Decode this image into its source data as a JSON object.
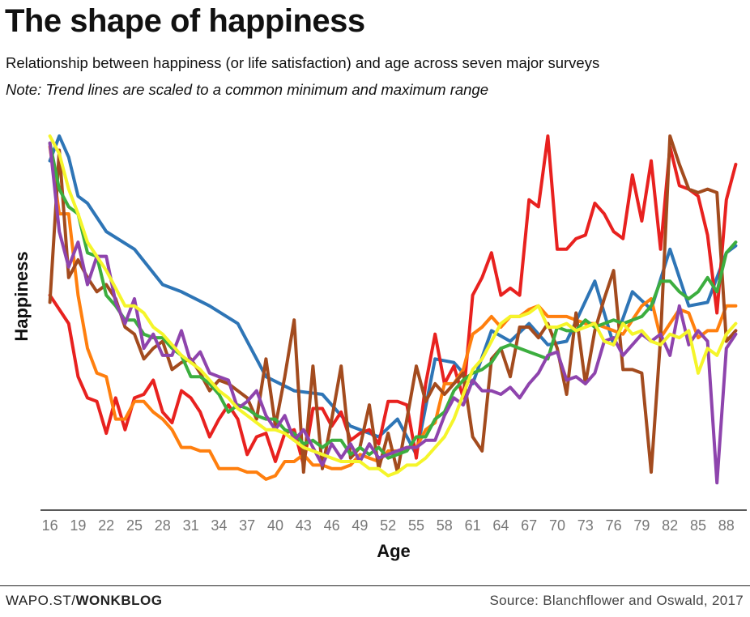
{
  "header": {
    "title": "The shape of happiness",
    "subtitle": "Relationship between happiness (or life satisfaction) and age across seven major surveys",
    "note": "Note: Trend lines are scaled to a common minimum and maximum range"
  },
  "footer": {
    "site_prefix": "WAPO.ST/",
    "site_section": "WONKBLOG",
    "source": "Source: Blanchflower and Oswald, 2017"
  },
  "chart_data": {
    "type": "line",
    "xlabel": "Age",
    "ylabel": "Happiness",
    "xlim": [
      15,
      90
    ],
    "ylim": [
      0,
      1
    ],
    "x_ticks": [
      16,
      19,
      22,
      25,
      28,
      31,
      34,
      37,
      40,
      43,
      46,
      49,
      52,
      55,
      58,
      61,
      64,
      67,
      70,
      73,
      76,
      79,
      82,
      85,
      88
    ],
    "y_ticks_shown": false,
    "grid": false,
    "legend": "none",
    "series": [
      {
        "color": "#2e75b6",
        "x": [
          16,
          17,
          18,
          19,
          20,
          22,
          25,
          28,
          30,
          33,
          36,
          39,
          42,
          45,
          48,
          51,
          53,
          55,
          57,
          59,
          61,
          63,
          65,
          67,
          69,
          71,
          74,
          76,
          78,
          80,
          82,
          84,
          86,
          88,
          89
        ],
        "values": [
          0.93,
          1.0,
          0.94,
          0.83,
          0.81,
          0.73,
          0.68,
          0.58,
          0.56,
          0.52,
          0.47,
          0.32,
          0.28,
          0.27,
          0.18,
          0.15,
          0.2,
          0.1,
          0.37,
          0.36,
          0.3,
          0.45,
          0.42,
          0.47,
          0.41,
          0.42,
          0.59,
          0.41,
          0.56,
          0.51,
          0.68,
          0.52,
          0.53,
          0.67,
          0.69
        ]
      },
      {
        "color": "#e8211f",
        "x": [
          16,
          17,
          18,
          19,
          20,
          21,
          22,
          23,
          24,
          25,
          26,
          27,
          28,
          29,
          30,
          31,
          32,
          33,
          34,
          35,
          36,
          37,
          38,
          39,
          40,
          41,
          42,
          43,
          44,
          45,
          46,
          47,
          48,
          49,
          50,
          51,
          52,
          53,
          54,
          55,
          56,
          57,
          58,
          59,
          60,
          61,
          62,
          63,
          64,
          65,
          66,
          67,
          68,
          69,
          70,
          71,
          72,
          73,
          74,
          75,
          76,
          77,
          78,
          79,
          80,
          81,
          82,
          83,
          84,
          85,
          86,
          87,
          88,
          89
        ],
        "values": [
          0.55,
          0.51,
          0.47,
          0.32,
          0.26,
          0.25,
          0.16,
          0.26,
          0.17,
          0.26,
          0.27,
          0.31,
          0.22,
          0.19,
          0.28,
          0.26,
          0.22,
          0.15,
          0.2,
          0.24,
          0.2,
          0.1,
          0.15,
          0.16,
          0.08,
          0.16,
          0.17,
          0.07,
          0.23,
          0.23,
          0.18,
          0.22,
          0.14,
          0.16,
          0.17,
          0.13,
          0.25,
          0.25,
          0.24,
          0.09,
          0.3,
          0.44,
          0.3,
          0.35,
          0.26,
          0.55,
          0.6,
          0.67,
          0.55,
          0.57,
          0.55,
          0.82,
          0.8,
          1.0,
          0.68,
          0.68,
          0.71,
          0.72,
          0.81,
          0.78,
          0.73,
          0.71,
          0.89,
          0.76,
          0.93,
          0.68,
          0.97,
          0.86,
          0.85,
          0.83,
          0.72,
          0.5,
          0.82,
          0.92
        ]
      },
      {
        "color": "#ff7f0e",
        "x": [
          16,
          17,
          18,
          19,
          20,
          21,
          22,
          23,
          24,
          25,
          26,
          27,
          28,
          29,
          30,
          31,
          32,
          33,
          34,
          35,
          36,
          37,
          38,
          39,
          40,
          41,
          42,
          43,
          44,
          45,
          46,
          47,
          48,
          49,
          50,
          51,
          52,
          53,
          54,
          55,
          56,
          57,
          58,
          59,
          60,
          61,
          62,
          63,
          64,
          65,
          66,
          67,
          68,
          69,
          70,
          71,
          72,
          73,
          74,
          75,
          76,
          77,
          78,
          79,
          80,
          81,
          82,
          83,
          84,
          85,
          86,
          87,
          88,
          89
        ],
        "values": [
          0.97,
          0.78,
          0.78,
          0.55,
          0.4,
          0.33,
          0.32,
          0.2,
          0.2,
          0.25,
          0.25,
          0.22,
          0.2,
          0.17,
          0.12,
          0.12,
          0.11,
          0.11,
          0.06,
          0.06,
          0.06,
          0.05,
          0.05,
          0.03,
          0.04,
          0.08,
          0.08,
          0.1,
          0.07,
          0.07,
          0.06,
          0.06,
          0.07,
          0.1,
          0.09,
          0.08,
          0.11,
          0.11,
          0.12,
          0.12,
          0.17,
          0.19,
          0.3,
          0.3,
          0.34,
          0.44,
          0.46,
          0.49,
          0.46,
          0.49,
          0.49,
          0.51,
          0.52,
          0.49,
          0.49,
          0.49,
          0.48,
          0.47,
          0.47,
          0.46,
          0.45,
          0.44,
          0.48,
          0.52,
          0.54,
          0.43,
          0.47,
          0.51,
          0.5,
          0.43,
          0.45,
          0.45,
          0.52,
          0.52
        ]
      },
      {
        "color": "#a34b1e",
        "x": [
          16,
          17,
          18,
          19,
          20,
          21,
          22,
          23,
          24,
          25,
          26,
          27,
          28,
          29,
          30,
          31,
          32,
          33,
          34,
          35,
          36,
          37,
          38,
          39,
          40,
          41,
          42,
          43,
          44,
          45,
          46,
          47,
          48,
          49,
          50,
          51,
          52,
          53,
          54,
          55,
          56,
          57,
          58,
          59,
          60,
          61,
          62,
          63,
          64,
          65,
          66,
          67,
          68,
          69,
          70,
          71,
          72,
          73,
          74,
          75,
          76,
          77,
          78,
          79,
          80,
          81,
          82,
          83,
          84,
          85,
          86,
          87,
          88,
          89
        ],
        "values": [
          0.53,
          0.96,
          0.6,
          0.65,
          0.6,
          0.56,
          0.58,
          0.54,
          0.46,
          0.44,
          0.37,
          0.4,
          0.42,
          0.34,
          0.36,
          0.37,
          0.33,
          0.28,
          0.31,
          0.3,
          0.28,
          0.26,
          0.2,
          0.37,
          0.18,
          0.32,
          0.48,
          0.05,
          0.35,
          0.06,
          0.2,
          0.35,
          0.09,
          0.12,
          0.24,
          0.06,
          0.16,
          0.05,
          0.2,
          0.35,
          0.25,
          0.3,
          0.27,
          0.3,
          0.33,
          0.15,
          0.11,
          0.37,
          0.4,
          0.32,
          0.46,
          0.46,
          0.43,
          0.47,
          0.4,
          0.27,
          0.5,
          0.3,
          0.45,
          0.54,
          0.62,
          0.34,
          0.34,
          0.33,
          0.05,
          0.43,
          1.0,
          0.92,
          0.85,
          0.84,
          0.85,
          0.84,
          0.42,
          0.45
        ]
      },
      {
        "color": "#3cae3f",
        "x": [
          16,
          17,
          18,
          19,
          20,
          21,
          22,
          23,
          24,
          25,
          26,
          27,
          28,
          29,
          30,
          31,
          32,
          33,
          34,
          35,
          36,
          37,
          38,
          39,
          40,
          41,
          42,
          43,
          44,
          45,
          46,
          47,
          48,
          49,
          50,
          51,
          52,
          53,
          54,
          55,
          56,
          57,
          58,
          59,
          60,
          61,
          62,
          63,
          64,
          65,
          66,
          67,
          68,
          69,
          70,
          71,
          72,
          73,
          74,
          75,
          76,
          77,
          78,
          79,
          80,
          81,
          82,
          83,
          84,
          85,
          86,
          87,
          88,
          89
        ],
        "values": [
          0.98,
          0.85,
          0.8,
          0.78,
          0.67,
          0.66,
          0.55,
          0.52,
          0.48,
          0.48,
          0.44,
          0.43,
          0.43,
          0.4,
          0.38,
          0.32,
          0.32,
          0.3,
          0.27,
          0.22,
          0.24,
          0.23,
          0.21,
          0.2,
          0.2,
          0.17,
          0.16,
          0.13,
          0.14,
          0.12,
          0.14,
          0.14,
          0.1,
          0.12,
          0.1,
          0.12,
          0.09,
          0.1,
          0.11,
          0.15,
          0.15,
          0.2,
          0.22,
          0.28,
          0.31,
          0.33,
          0.34,
          0.36,
          0.4,
          0.41,
          0.4,
          0.39,
          0.38,
          0.37,
          0.46,
          0.45,
          0.45,
          0.48,
          0.46,
          0.47,
          0.48,
          0.47,
          0.48,
          0.49,
          0.52,
          0.59,
          0.59,
          0.56,
          0.54,
          0.56,
          0.6,
          0.56,
          0.67,
          0.7
        ]
      },
      {
        "color": "#8e44ad",
        "x": [
          16,
          17,
          18,
          19,
          20,
          21,
          22,
          23,
          24,
          25,
          26,
          27,
          28,
          29,
          30,
          31,
          32,
          33,
          34,
          35,
          36,
          37,
          38,
          39,
          40,
          41,
          42,
          43,
          44,
          45,
          46,
          47,
          48,
          49,
          50,
          51,
          52,
          53,
          54,
          55,
          56,
          57,
          58,
          59,
          60,
          61,
          62,
          63,
          64,
          65,
          66,
          67,
          68,
          69,
          70,
          71,
          72,
          73,
          74,
          75,
          76,
          77,
          78,
          79,
          80,
          81,
          82,
          83,
          84,
          85,
          86,
          87,
          88,
          89
        ],
        "values": [
          0.98,
          0.73,
          0.63,
          0.7,
          0.58,
          0.66,
          0.66,
          0.53,
          0.47,
          0.54,
          0.4,
          0.44,
          0.38,
          0.38,
          0.45,
          0.36,
          0.39,
          0.33,
          0.32,
          0.31,
          0.23,
          0.25,
          0.28,
          0.21,
          0.17,
          0.21,
          0.14,
          0.17,
          0.12,
          0.07,
          0.13,
          0.09,
          0.13,
          0.08,
          0.13,
          0.09,
          0.1,
          0.11,
          0.12,
          0.12,
          0.14,
          0.14,
          0.21,
          0.26,
          0.24,
          0.31,
          0.28,
          0.28,
          0.27,
          0.29,
          0.26,
          0.3,
          0.33,
          0.38,
          0.39,
          0.31,
          0.32,
          0.3,
          0.33,
          0.42,
          0.43,
          0.38,
          0.41,
          0.44,
          0.42,
          0.44,
          0.38,
          0.52,
          0.41,
          0.45,
          0.42,
          0.02,
          0.4,
          0.44
        ]
      },
      {
        "color": "#f5f52a",
        "x": [
          16,
          17,
          18,
          19,
          20,
          21,
          22,
          23,
          24,
          25,
          26,
          27,
          28,
          29,
          30,
          31,
          32,
          33,
          34,
          35,
          36,
          37,
          38,
          39,
          40,
          41,
          42,
          43,
          44,
          45,
          46,
          47,
          48,
          49,
          50,
          51,
          52,
          53,
          54,
          55,
          56,
          57,
          58,
          59,
          60,
          61,
          62,
          63,
          64,
          65,
          66,
          67,
          68,
          69,
          70,
          71,
          72,
          73,
          74,
          75,
          76,
          77,
          78,
          79,
          80,
          81,
          82,
          83,
          84,
          85,
          86,
          87,
          88,
          89
        ],
        "values": [
          1.0,
          0.95,
          0.85,
          0.78,
          0.7,
          0.66,
          0.62,
          0.57,
          0.52,
          0.52,
          0.5,
          0.46,
          0.44,
          0.41,
          0.38,
          0.36,
          0.34,
          0.31,
          0.28,
          0.26,
          0.23,
          0.21,
          0.19,
          0.17,
          0.17,
          0.16,
          0.14,
          0.12,
          0.11,
          0.1,
          0.09,
          0.08,
          0.08,
          0.08,
          0.06,
          0.06,
          0.04,
          0.05,
          0.07,
          0.07,
          0.09,
          0.12,
          0.15,
          0.2,
          0.27,
          0.34,
          0.37,
          0.42,
          0.47,
          0.49,
          0.49,
          0.5,
          0.52,
          0.46,
          0.46,
          0.47,
          0.45,
          0.46,
          0.47,
          0.42,
          0.41,
          0.47,
          0.44,
          0.45,
          0.42,
          0.41,
          0.44,
          0.43,
          0.45,
          0.33,
          0.4,
          0.38,
          0.44,
          0.47
        ]
      }
    ]
  }
}
